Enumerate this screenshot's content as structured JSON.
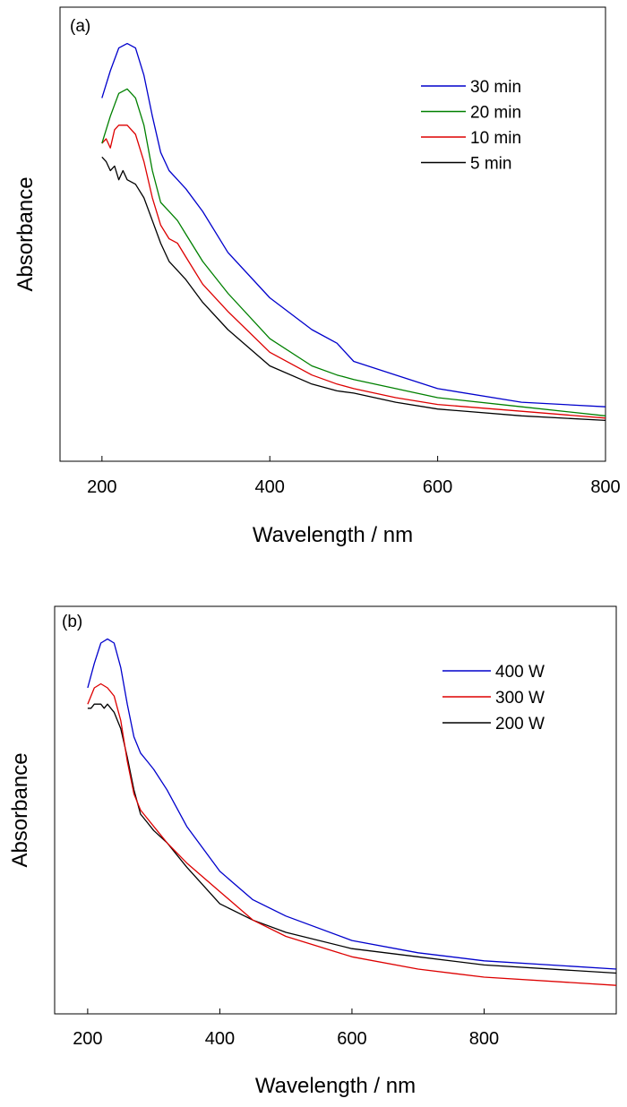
{
  "chart_data": [
    {
      "type": "line",
      "panel_label": "(a)",
      "xlabel": "Wavelength / nm",
      "ylabel": "Absorbance",
      "xlim": [
        150,
        800
      ],
      "ylim": [
        0,
        1
      ],
      "x_ticks": [
        200,
        400,
        600,
        800
      ],
      "y_ticks_shown": false,
      "grid": false,
      "legend_position": "top-right",
      "series": [
        {
          "name": "30 min",
          "color": "#0000cc",
          "x": [
            200,
            210,
            220,
            230,
            240,
            250,
            260,
            270,
            280,
            290,
            300,
            320,
            350,
            400,
            450,
            480,
            500,
            550,
            600,
            700,
            800
          ],
          "y": [
            0.8,
            0.86,
            0.91,
            0.92,
            0.91,
            0.85,
            0.76,
            0.68,
            0.64,
            0.62,
            0.6,
            0.55,
            0.46,
            0.36,
            0.29,
            0.26,
            0.22,
            0.19,
            0.16,
            0.13,
            0.12
          ]
        },
        {
          "name": "20 min",
          "color": "#008000",
          "x": [
            200,
            210,
            220,
            230,
            240,
            250,
            260,
            270,
            280,
            290,
            300,
            320,
            350,
            400,
            450,
            480,
            500,
            550,
            600,
            700,
            800
          ],
          "y": [
            0.7,
            0.76,
            0.81,
            0.82,
            0.8,
            0.74,
            0.64,
            0.57,
            0.55,
            0.53,
            0.5,
            0.44,
            0.37,
            0.27,
            0.21,
            0.19,
            0.18,
            0.16,
            0.14,
            0.12,
            0.1
          ]
        },
        {
          "name": "10 min",
          "color": "#dd0000",
          "x": [
            200,
            205,
            210,
            215,
            220,
            230,
            240,
            250,
            260,
            270,
            280,
            290,
            300,
            320,
            350,
            400,
            450,
            480,
            500,
            550,
            600,
            700,
            800
          ],
          "y": [
            0.7,
            0.71,
            0.69,
            0.73,
            0.74,
            0.74,
            0.72,
            0.66,
            0.58,
            0.52,
            0.49,
            0.48,
            0.45,
            0.39,
            0.33,
            0.24,
            0.19,
            0.17,
            0.16,
            0.14,
            0.125,
            0.11,
            0.095
          ]
        },
        {
          "name": "5 min",
          "color": "#000000",
          "x": [
            200,
            205,
            210,
            215,
            220,
            225,
            230,
            240,
            250,
            260,
            270,
            280,
            290,
            300,
            320,
            350,
            400,
            450,
            480,
            500,
            550,
            600,
            700,
            800
          ],
          "y": [
            0.67,
            0.66,
            0.64,
            0.65,
            0.62,
            0.64,
            0.62,
            0.61,
            0.58,
            0.53,
            0.48,
            0.44,
            0.42,
            0.4,
            0.35,
            0.29,
            0.21,
            0.17,
            0.155,
            0.15,
            0.13,
            0.115,
            0.1,
            0.09
          ]
        }
      ]
    },
    {
      "type": "line",
      "panel_label": "(b)",
      "xlabel": "Wavelength / nm",
      "ylabel": "Absorbance",
      "xlim": [
        150,
        1000
      ],
      "ylim": [
        0,
        1
      ],
      "x_ticks": [
        200,
        400,
        600,
        800
      ],
      "y_ticks_shown": false,
      "grid": false,
      "legend_position": "top-right",
      "series": [
        {
          "name": "400 W",
          "color": "#0000cc",
          "x": [
            200,
            210,
            220,
            230,
            240,
            250,
            260,
            270,
            280,
            290,
            300,
            320,
            350,
            400,
            450,
            500,
            600,
            700,
            800,
            1000
          ],
          "y": [
            0.8,
            0.86,
            0.91,
            0.92,
            0.91,
            0.85,
            0.76,
            0.68,
            0.64,
            0.62,
            0.6,
            0.55,
            0.46,
            0.35,
            0.28,
            0.24,
            0.18,
            0.15,
            0.13,
            0.11
          ]
        },
        {
          "name": "300 W",
          "color": "#dd0000",
          "x": [
            200,
            210,
            220,
            230,
            240,
            250,
            260,
            270,
            280,
            290,
            300,
            320,
            350,
            400,
            450,
            500,
            600,
            700,
            800,
            1000
          ],
          "y": [
            0.76,
            0.8,
            0.81,
            0.8,
            0.78,
            0.72,
            0.62,
            0.54,
            0.5,
            0.48,
            0.46,
            0.42,
            0.37,
            0.3,
            0.23,
            0.19,
            0.14,
            0.11,
            0.09,
            0.07
          ]
        },
        {
          "name": "200 W",
          "color": "#000000",
          "x": [
            200,
            205,
            210,
            215,
            220,
            225,
            230,
            240,
            250,
            260,
            270,
            280,
            290,
            300,
            320,
            350,
            400,
            450,
            500,
            600,
            700,
            800,
            1000
          ],
          "y": [
            0.75,
            0.75,
            0.76,
            0.76,
            0.76,
            0.75,
            0.76,
            0.74,
            0.7,
            0.63,
            0.55,
            0.49,
            0.47,
            0.45,
            0.42,
            0.36,
            0.27,
            0.23,
            0.2,
            0.16,
            0.14,
            0.12,
            0.1
          ]
        }
      ]
    }
  ]
}
